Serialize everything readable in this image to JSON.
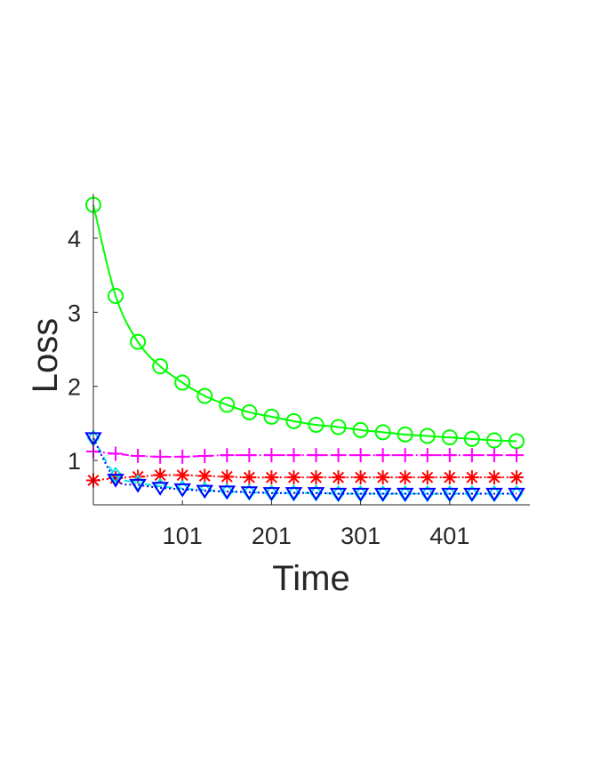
{
  "chart_data": {
    "type": "line",
    "xlabel": "Time",
    "ylabel": "Loss",
    "xlim": [
      1,
      491
    ],
    "ylim": [
      0.4,
      4.6
    ],
    "xticks": [
      101,
      201,
      301,
      401
    ],
    "xtick_labels": [
      "101",
      "201",
      "301",
      "401"
    ],
    "yticks": [
      1,
      2,
      3,
      4
    ],
    "ytick_labels": [
      "1",
      "2",
      "3",
      "4"
    ],
    "grid": false,
    "x": [
      1,
      26,
      51,
      76,
      101,
      126,
      151,
      176,
      201,
      226,
      251,
      276,
      301,
      326,
      351,
      376,
      401,
      426,
      451,
      476
    ],
    "series": [
      {
        "color": "#00ff00",
        "line": "solid",
        "marker": "circle",
        "values": [
          4.45,
          3.22,
          2.6,
          2.27,
          2.05,
          1.87,
          1.75,
          1.65,
          1.59,
          1.53,
          1.48,
          1.45,
          1.41,
          1.38,
          1.35,
          1.33,
          1.31,
          1.29,
          1.27,
          1.26
        ]
      },
      {
        "color": "#ff00ff",
        "line": "dashdot",
        "marker": "plus",
        "values": [
          1.12,
          1.09,
          1.06,
          1.05,
          1.05,
          1.06,
          1.07,
          1.07,
          1.07,
          1.07,
          1.07,
          1.07,
          1.07,
          1.07,
          1.07,
          1.07,
          1.07,
          1.07,
          1.07,
          1.07
        ]
      },
      {
        "color": "#ff0000",
        "line": "dotted",
        "marker": "asterisk",
        "values": [
          0.73,
          0.76,
          0.78,
          0.8,
          0.8,
          0.79,
          0.78,
          0.77,
          0.77,
          0.77,
          0.77,
          0.77,
          0.77,
          0.77,
          0.77,
          0.77,
          0.77,
          0.77,
          0.77,
          0.77
        ]
      },
      {
        "color": "#00e5e5",
        "line": "dashed",
        "marker": "diamond",
        "values": [
          1.3,
          0.8,
          0.7,
          0.65,
          0.62,
          0.6,
          0.58,
          0.57,
          0.56,
          0.56,
          0.56,
          0.55,
          0.55,
          0.55,
          0.55,
          0.55,
          0.55,
          0.55,
          0.55,
          0.55
        ]
      },
      {
        "color": "#0000ff",
        "line": "dotted",
        "marker": "triangle-down",
        "values": [
          1.3,
          0.74,
          0.67,
          0.63,
          0.61,
          0.59,
          0.58,
          0.57,
          0.56,
          0.56,
          0.56,
          0.55,
          0.55,
          0.55,
          0.55,
          0.55,
          0.55,
          0.55,
          0.55,
          0.55
        ]
      }
    ]
  }
}
